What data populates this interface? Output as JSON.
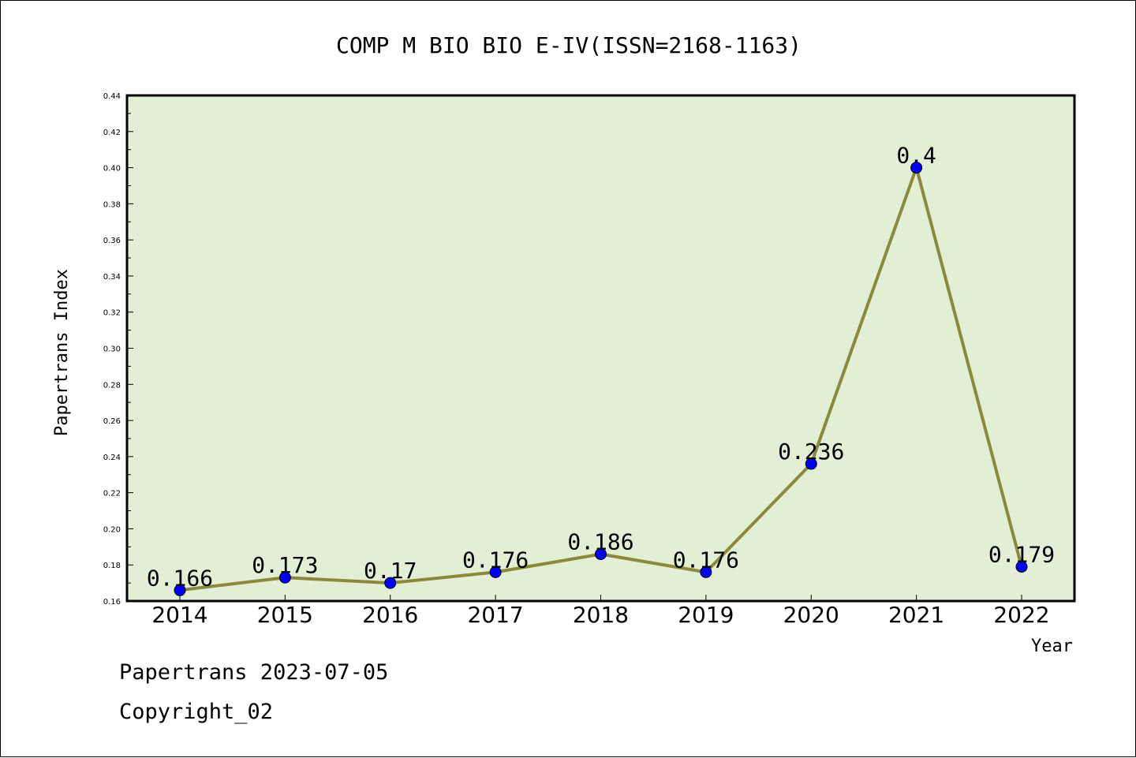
{
  "chart_data": {
    "type": "line",
    "title": "COMP M BIO BIO E-IV(ISSN=2168-1163)",
    "xlabel": "Year",
    "ylabel": "Papertrans Index",
    "categories": [
      "2014",
      "2015",
      "2016",
      "2017",
      "2018",
      "2019",
      "2020",
      "2021",
      "2022"
    ],
    "values": [
      0.166,
      0.173,
      0.17,
      0.176,
      0.186,
      0.176,
      0.236,
      0.4,
      0.179
    ],
    "data_labels": [
      "0.166",
      "0.173",
      "0.17",
      "0.176",
      "0.186",
      "0.176",
      "0.236",
      "0.4",
      "0.179"
    ],
    "ylim": [
      0.16,
      0.44
    ],
    "yticks": [
      "0.16",
      "0.18",
      "0.20",
      "0.22",
      "0.24",
      "0.26",
      "0.28",
      "0.30",
      "0.32",
      "0.34",
      "0.36",
      "0.38",
      "0.40",
      "0.42",
      "0.44"
    ],
    "grid": false,
    "colors": {
      "line": "#8b8a3a",
      "marker": "#0000ff",
      "plot_bg": "#e2efd5"
    }
  },
  "footer": {
    "line1": "Papertrans 2023-07-05",
    "line2": "Copyright_02"
  }
}
